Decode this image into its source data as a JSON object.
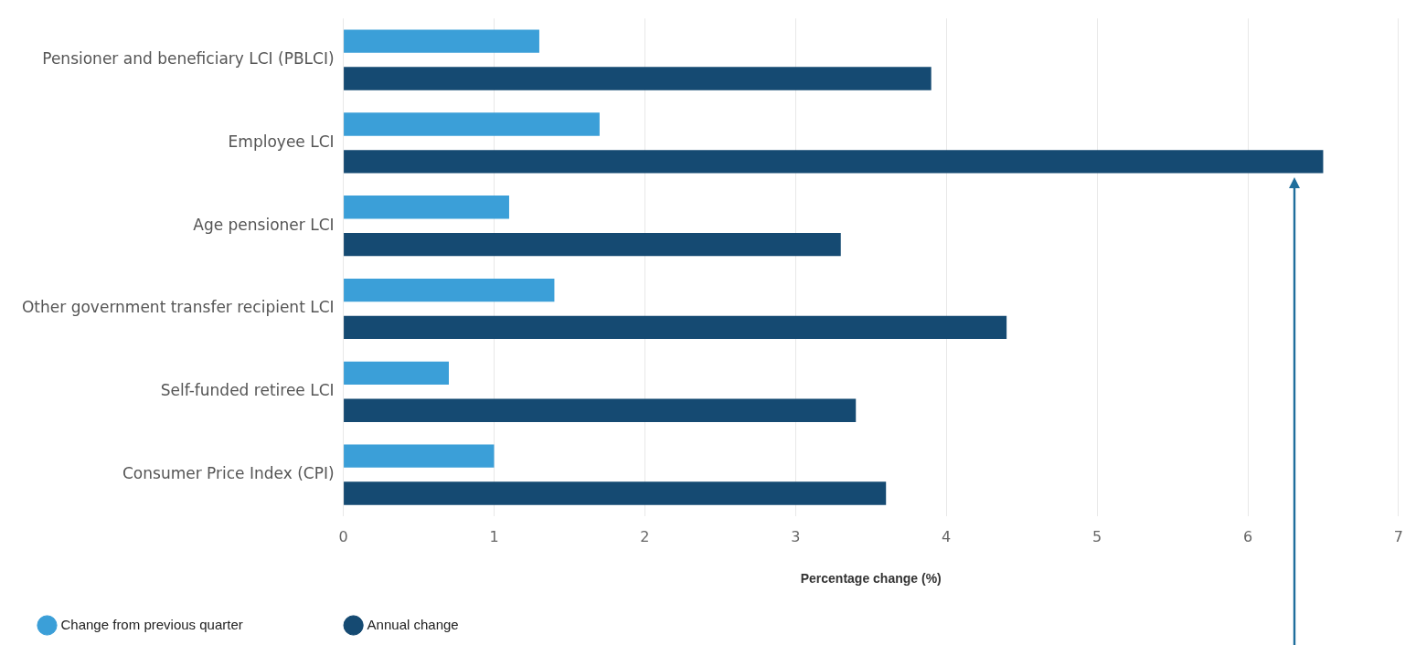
{
  "chart_data": {
    "type": "bar",
    "orientation": "horizontal",
    "categories": [
      "Pensioner and beneficiary LCI (PBLCI)",
      "Employee LCI",
      "Age pensioner LCI",
      "Other government transfer recipient LCI",
      "Self-funded retiree LCI",
      "Consumer Price Index (CPI)"
    ],
    "series": [
      {
        "name": "Change from previous quarter",
        "color": "#3b9fd8",
        "values": [
          1.3,
          1.7,
          1.1,
          1.4,
          0.7,
          1.0
        ]
      },
      {
        "name": "Annual change",
        "color": "#154a72",
        "values": [
          3.9,
          6.5,
          3.3,
          4.4,
          3.4,
          3.6
        ]
      }
    ],
    "xlim": [
      0,
      7
    ],
    "xticks": [
      0,
      1,
      2,
      3,
      4,
      5,
      6,
      7
    ],
    "xlabel": "Percentage change (%)",
    "grid": "x",
    "legend": "bottom left"
  }
}
